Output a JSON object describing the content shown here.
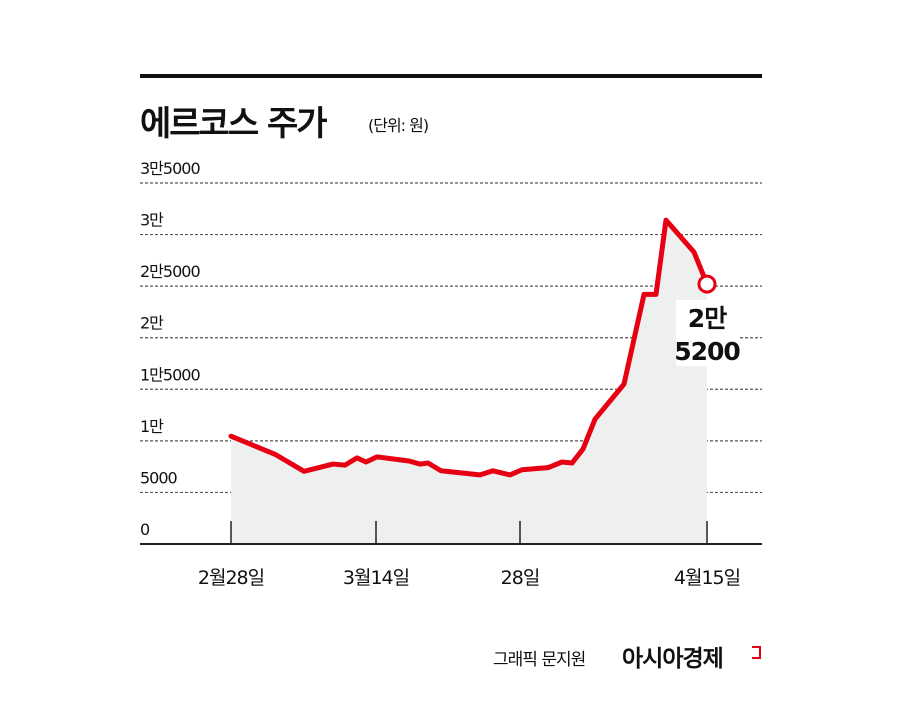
{
  "header": {
    "title": "에르코스 주가",
    "unit": "(단위: 원)"
  },
  "footer": {
    "credit": "그래픽 문지원",
    "brand": "아시아경제"
  },
  "colors": {
    "line": "#e60012",
    "area": "#eeefef",
    "grid": "#555555",
    "text": "#111111"
  },
  "annotation": {
    "line1": "2만",
    "line2": "5200",
    "value": 25200
  },
  "chart_data": {
    "type": "area",
    "title": "에르코스 주가",
    "subtitle": "(단위: 원)",
    "xlabel": "",
    "ylabel": "",
    "ylim": [
      0,
      35000
    ],
    "grid": true,
    "legend": "none",
    "y_ticks": [
      {
        "value": 0,
        "label": "0"
      },
      {
        "value": 5000,
        "label": "5000"
      },
      {
        "value": 10000,
        "label": "1만"
      },
      {
        "value": 15000,
        "label": "1만5000"
      },
      {
        "value": 20000,
        "label": "2만"
      },
      {
        "value": 25000,
        "label": "2만5000"
      },
      {
        "value": 30000,
        "label": "3만"
      },
      {
        "value": 35000,
        "label": "3만5000"
      }
    ],
    "x_ticks": [
      "2월28일",
      "3월14일",
      "28일",
      "4월15일"
    ],
    "series": [
      {
        "name": "에르코스 주가",
        "values": [
          10450,
          8700,
          7050,
          7750,
          7650,
          8350,
          7950,
          8450,
          8050,
          7750,
          7850,
          7100,
          6700,
          7100,
          6700,
          7200,
          7400,
          7950,
          7850,
          9200,
          12100,
          15500,
          24200,
          24200,
          31400,
          28300,
          25200
        ]
      }
    ],
    "annotations": [
      {
        "label": "2만 5200",
        "value": 25200,
        "position": "last point"
      }
    ]
  }
}
